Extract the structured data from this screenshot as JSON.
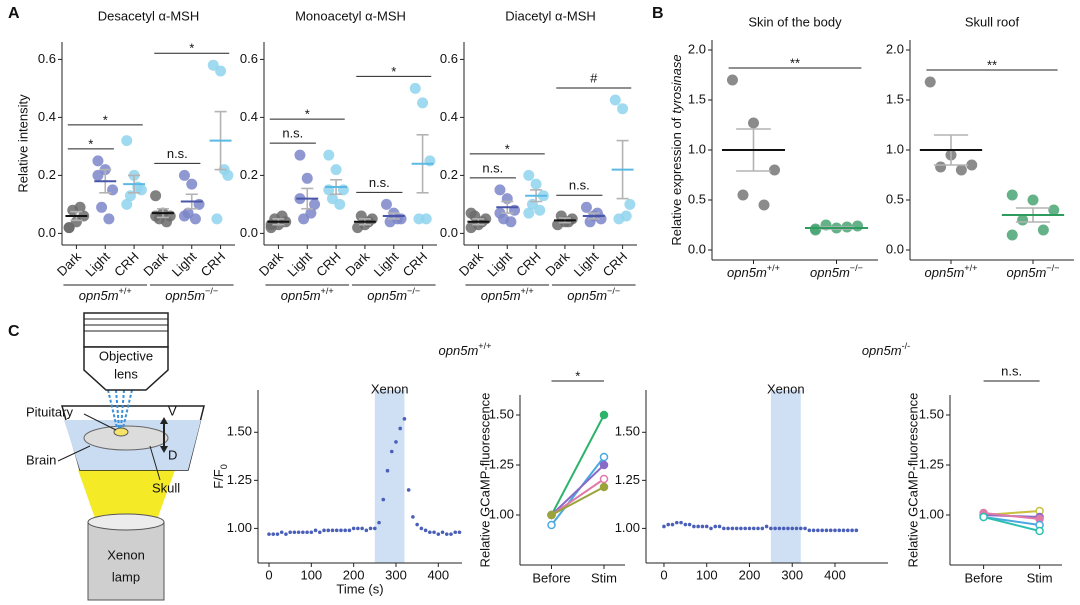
{
  "panels": [
    "A",
    "B",
    "C"
  ],
  "diagram": {
    "objective": [
      "Objective",
      "lens"
    ],
    "pituitary": "Pituitary",
    "brain": "Brain",
    "skull": "Skull",
    "v": "V",
    "d": "D",
    "lamp": [
      "Xenon",
      "lamp"
    ]
  },
  "chart_data": [
    {
      "type": "dotplot",
      "title": "Desacetyl α-MSH",
      "y_label": "Relative intensity",
      "x_label_rotation": -45,
      "categories": [
        "Dark",
        "Light",
        "CRH",
        "Dark",
        "Light",
        "CRH"
      ],
      "groups": [
        {
          "label": {
            "em": "opn5m",
            "sup": "+/+"
          },
          "span": [
            0,
            2
          ]
        },
        {
          "label": {
            "em": "opn5m",
            "sup": "−/−"
          },
          "span": [
            3,
            5
          ]
        }
      ],
      "colors": [
        "#6b6b6b",
        "#7c86c9",
        "#8fd3ef",
        "#6b6b6b",
        "#7c86c9",
        "#8fd3ef"
      ],
      "mean_colors": [
        "#111111",
        "#4a56a8",
        "#5bb9e3",
        "#111111",
        "#4a56a8",
        "#5bb9e3"
      ],
      "points": [
        [
          0.02,
          0.04,
          0.06,
          0.08,
          0.09,
          0.02
        ],
        [
          0.25,
          0.22,
          0.15,
          0.09,
          0.05,
          0.2
        ],
        [
          0.32,
          0.2,
          0.15,
          0.13,
          0.16,
          0.1
        ],
        [
          0.13,
          0.07,
          0.06,
          0.05,
          0.04,
          0.06
        ],
        [
          0.2,
          0.17,
          0.1,
          0.07,
          0.05,
          0.06
        ],
        [
          0.58,
          0.56,
          0.2,
          0.05,
          0.22
        ]
      ],
      "means": [
        0.06,
        0.18,
        0.17,
        0.07,
        0.11,
        0.32
      ],
      "sems": [
        0.015,
        0.04,
        0.03,
        0.015,
        0.025,
        0.1
      ],
      "ylim": [
        -0.04,
        0.66
      ],
      "yticks": [
        {
          "value": 0,
          "label": "0.0"
        },
        0.2,
        0.4,
        0.6
      ],
      "comparisons": [
        {
          "label": "*",
          "between": [
            0,
            1
          ]
        },
        {
          "label": "*",
          "between": [
            0,
            2
          ]
        },
        {
          "label": "n.s.",
          "between": [
            3,
            4
          ]
        },
        {
          "label": "*",
          "between": [
            3,
            5
          ]
        }
      ]
    },
    {
      "type": "dotplot",
      "title": "Monoacetyl α-MSH",
      "x_label_rotation": -45,
      "categories": [
        "Dark",
        "Light",
        "CRH",
        "Dark",
        "Light",
        "CRH"
      ],
      "groups": [
        {
          "label": {
            "em": "opn5m",
            "sup": "+/+"
          },
          "span": [
            0,
            2
          ]
        },
        {
          "label": {
            "em": "opn5m",
            "sup": "−/−"
          },
          "span": [
            3,
            5
          ]
        }
      ],
      "colors": [
        "#6b6b6b",
        "#7c86c9",
        "#8fd3ef",
        "#6b6b6b",
        "#7c86c9",
        "#8fd3ef"
      ],
      "mean_colors": [
        "#111111",
        "#4a56a8",
        "#5bb9e3",
        "#111111",
        "#4a56a8",
        "#5bb9e3"
      ],
      "points": [
        [
          0.02,
          0.03,
          0.04,
          0.05,
          0.06,
          0.03
        ],
        [
          0.27,
          0.19,
          0.1,
          0.05,
          0.07,
          0.12
        ],
        [
          0.27,
          0.22,
          0.15,
          0.12,
          0.1,
          0.15
        ],
        [
          0.02,
          0.03,
          0.05,
          0.06,
          0.04
        ],
        [
          0.1,
          0.07,
          0.05,
          0.04,
          0.05
        ],
        [
          0.5,
          0.45,
          0.25,
          0.05,
          0.05
        ]
      ],
      "means": [
        0.04,
        0.12,
        0.16,
        0.04,
        0.06,
        0.24
      ],
      "sems": [
        0.01,
        0.035,
        0.025,
        0.01,
        0.01,
        0.1
      ],
      "ylim": [
        -0.04,
        0.66
      ],
      "yticks": [
        {
          "value": 0,
          "label": "0.0"
        },
        0.2,
        0.4,
        0.6
      ],
      "comparisons": [
        {
          "label": "n.s.",
          "between": [
            0,
            1
          ]
        },
        {
          "label": "*",
          "between": [
            0,
            2
          ]
        },
        {
          "label": "n.s.",
          "between": [
            3,
            4
          ]
        },
        {
          "label": "*",
          "between": [
            3,
            5
          ]
        }
      ]
    },
    {
      "type": "dotplot",
      "title": "Diacetyl α-MSH",
      "x_label_rotation": -45,
      "categories": [
        "Dark",
        "Light",
        "CRH",
        "Dark",
        "Light",
        "CRH"
      ],
      "groups": [
        {
          "label": {
            "em": "opn5m",
            "sup": "+/+"
          },
          "span": [
            0,
            2
          ]
        },
        {
          "label": {
            "em": "opn5m",
            "sup": "−/−"
          },
          "span": [
            3,
            5
          ]
        }
      ],
      "colors": [
        "#6b6b6b",
        "#7c86c9",
        "#8fd3ef",
        "#6b6b6b",
        "#7c86c9",
        "#8fd3ef"
      ],
      "mean_colors": [
        "#111111",
        "#4a56a8",
        "#5bb9e3",
        "#111111",
        "#4a56a8",
        "#5bb9e3"
      ],
      "points": [
        [
          0.02,
          0.03,
          0.05,
          0.06,
          0.04,
          0.07
        ],
        [
          0.15,
          0.12,
          0.08,
          0.05,
          0.04,
          0.07
        ],
        [
          0.2,
          0.17,
          0.13,
          0.1,
          0.08,
          0.07
        ],
        [
          0.03,
          0.04,
          0.05,
          0.06,
          0.04
        ],
        [
          0.09,
          0.06,
          0.05,
          0.04,
          0.07
        ],
        [
          0.46,
          0.43,
          0.1,
          0.05,
          0.06
        ]
      ],
      "means": [
        0.04,
        0.09,
        0.13,
        0.045,
        0.06,
        0.22
      ],
      "sems": [
        0.01,
        0.02,
        0.02,
        0.008,
        0.01,
        0.1
      ],
      "ylim": [
        -0.04,
        0.66
      ],
      "yticks": [
        {
          "value": 0,
          "label": "0.0"
        },
        0.2,
        0.4,
        0.6
      ],
      "comparisons": [
        {
          "label": "n.s.",
          "between": [
            0,
            1
          ]
        },
        {
          "label": "*",
          "between": [
            0,
            2
          ]
        },
        {
          "label": "n.s.",
          "between": [
            3,
            4
          ]
        },
        {
          "label": "#",
          "between": [
            3,
            5
          ]
        }
      ]
    },
    {
      "type": "dotplot",
      "title": "Skin of the body",
      "y_label": {
        "text": "Relative expression of",
        "em": "tyrosinase"
      },
      "categories": [
        {
          "em": "opn5m",
          "sup": "+/+"
        },
        {
          "em": "opn5m",
          "sup": "−/−"
        }
      ],
      "colors": [
        "#777777",
        "#4aa574"
      ],
      "mean_colors": [
        "#111111",
        "#2e9c5e"
      ],
      "points": [
        [
          1.7,
          1.27,
          0.8,
          0.55,
          0.45
        ],
        [
          0.2,
          0.22,
          0.24,
          0.25,
          0.23,
          0.21
        ]
      ],
      "means": [
        1.0,
        0.22
      ],
      "sems": [
        0.21,
        0.01
      ],
      "ylim": [
        -0.1,
        2.1
      ],
      "yticks": [
        {
          "value": 0,
          "label": "0.0"
        },
        0.5,
        {
          "value": 1,
          "label": "1.0"
        },
        1.5,
        {
          "value": 2,
          "label": "2.0"
        }
      ],
      "comparisons": [
        {
          "label": "**",
          "between": [
            0,
            1
          ]
        }
      ]
    },
    {
      "type": "dotplot",
      "title": "Skull roof",
      "categories": [
        {
          "em": "opn5m",
          "sup": "+/+"
        },
        {
          "em": "opn5m",
          "sup": "−/−"
        }
      ],
      "colors": [
        "#777777",
        "#4aa574"
      ],
      "mean_colors": [
        "#111111",
        "#2e9c5e"
      ],
      "points": [
        [
          1.68,
          0.95,
          0.85,
          0.83,
          0.8
        ],
        [
          0.55,
          0.5,
          0.4,
          0.3,
          0.2,
          0.15
        ]
      ],
      "means": [
        1.0,
        0.35
      ],
      "sems": [
        0.15,
        0.07
      ],
      "ylim": [
        -0.1,
        2.1
      ],
      "yticks": [
        {
          "value": 0,
          "label": "0.0"
        },
        0.5,
        {
          "value": 1,
          "label": "1.0"
        },
        1.5,
        {
          "value": 2,
          "label": "2.0"
        }
      ],
      "comparisons": [
        {
          "label": "**",
          "between": [
            0,
            1
          ]
        }
      ]
    },
    {
      "type": "scatter",
      "title": {
        "em": "opn5m",
        "sup": "+/+"
      },
      "x_label": "Time (s)",
      "y_label": {
        "text": "F/F",
        "sub": "0"
      },
      "color": "#4a5fb8",
      "shade": {
        "range": [
          250,
          320
        ],
        "label": "Xenon",
        "color": "#cfe0f5"
      },
      "x": [
        0,
        10,
        20,
        30,
        40,
        50,
        60,
        70,
        80,
        90,
        100,
        110,
        120,
        130,
        140,
        150,
        160,
        170,
        180,
        190,
        200,
        210,
        220,
        230,
        240,
        250,
        260,
        270,
        280,
        290,
        300,
        310,
        320,
        330,
        340,
        350,
        360,
        370,
        380,
        390,
        400,
        410,
        420,
        430,
        440,
        450
      ],
      "values": [
        0.97,
        0.97,
        0.97,
        0.98,
        0.97,
        0.98,
        0.98,
        0.98,
        0.98,
        0.98,
        0.98,
        0.99,
        0.98,
        0.99,
        0.99,
        0.99,
        0.99,
        0.99,
        0.99,
        0.99,
        1.0,
        1.0,
        1.0,
        0.99,
        1.0,
        1.0,
        1.03,
        1.15,
        1.3,
        1.4,
        1.45,
        1.52,
        1.57,
        1.2,
        1.06,
        1.02,
        1.0,
        0.99,
        0.98,
        0.98,
        0.97,
        0.98,
        0.97,
        0.97,
        0.98,
        0.98
      ],
      "xlim": [
        -26,
        456
      ],
      "xticks": [
        0,
        100,
        200,
        300,
        400
      ],
      "ylim": [
        0.82,
        1.72
      ],
      "yticks": [
        {
          "value": 1,
          "label": "1.00"
        },
        1.25,
        {
          "value": 1.5,
          "label": "1.50"
        }
      ]
    },
    {
      "type": "paired",
      "y_label": "Relative GCaMP-fluorescence",
      "categories": [
        "Before",
        "Stim"
      ],
      "series": [
        {
          "color": "#2db36b",
          "values": [
            1.0,
            1.5
          ]
        },
        {
          "color": "#4aa8e0",
          "values": [
            0.95,
            1.29
          ],
          "open": true
        },
        {
          "color": "#8a6ac8",
          "values": [
            1.0,
            1.25
          ]
        },
        {
          "color": "#e07aa8",
          "values": [
            1.0,
            1.18
          ],
          "open": true
        },
        {
          "color": "#9aa43a",
          "values": [
            1.0,
            1.14
          ]
        }
      ],
      "ylim": [
        0.75,
        1.6
      ],
      "yticks": [
        {
          "value": 1,
          "label": "1.00"
        },
        1.25,
        {
          "value": 1.5,
          "label": "1.50"
        }
      ],
      "comparison": "*"
    },
    {
      "type": "scatter",
      "title": {
        "em": "opn5m",
        "sup": "-/-"
      },
      "color": "#4a5fb8",
      "shade": {
        "range": [
          250,
          320
        ],
        "label": "Xenon",
        "color": "#cfe0f5"
      },
      "x": [
        0,
        10,
        20,
        30,
        40,
        50,
        60,
        70,
        80,
        90,
        100,
        110,
        120,
        130,
        140,
        150,
        160,
        170,
        180,
        190,
        200,
        210,
        220,
        230,
        240,
        250,
        260,
        270,
        280,
        290,
        300,
        310,
        320,
        330,
        340,
        350,
        360,
        370,
        380,
        390,
        400,
        410,
        420,
        430,
        440,
        450
      ],
      "values": [
        1.01,
        1.02,
        1.02,
        1.03,
        1.03,
        1.02,
        1.02,
        1.01,
        1.01,
        1.01,
        1.01,
        1.0,
        1.01,
        1.01,
        1.0,
        1.0,
        1.0,
        1.0,
        1.0,
        1.0,
        1.0,
        1.0,
        1.0,
        1.0,
        1.01,
        1.0,
        1.0,
        1.0,
        1.0,
        1.0,
        1.0,
        1.0,
        1.0,
        1.0,
        0.99,
        0.99,
        0.99,
        0.99,
        0.99,
        0.99,
        0.99,
        0.99,
        0.99,
        0.99,
        0.99,
        0.99
      ],
      "xlim": [
        -42,
        524
      ],
      "xticks": [
        0,
        100,
        200,
        300,
        400
      ],
      "ylim": [
        0.82,
        1.72
      ],
      "yticks": [
        {
          "value": 1,
          "label": "1.00"
        },
        1.25,
        {
          "value": 1.5,
          "label": "1.50"
        }
      ]
    },
    {
      "type": "paired",
      "y_label": "Relative GCaMP-fluorescence",
      "categories": [
        "Before",
        "Stim"
      ],
      "series": [
        {
          "color": "#c8c040",
          "values": [
            1.0,
            1.02
          ],
          "open": true
        },
        {
          "color": "#8a6ac8",
          "values": [
            1.0,
            0.99
          ]
        },
        {
          "color": "#e07aa8",
          "values": [
            1.01,
            0.98
          ]
        },
        {
          "color": "#4aa8e0",
          "values": [
            0.99,
            0.95
          ],
          "open": true
        },
        {
          "color": "#2cc0b0",
          "values": [
            0.99,
            0.92
          ],
          "open": true
        }
      ],
      "ylim": [
        0.75,
        1.6
      ],
      "yticks": [
        {
          "value": 1,
          "label": "1.00"
        },
        1.25,
        {
          "value": 1.5,
          "label": "1.50"
        }
      ],
      "comparison": "n.s."
    }
  ]
}
